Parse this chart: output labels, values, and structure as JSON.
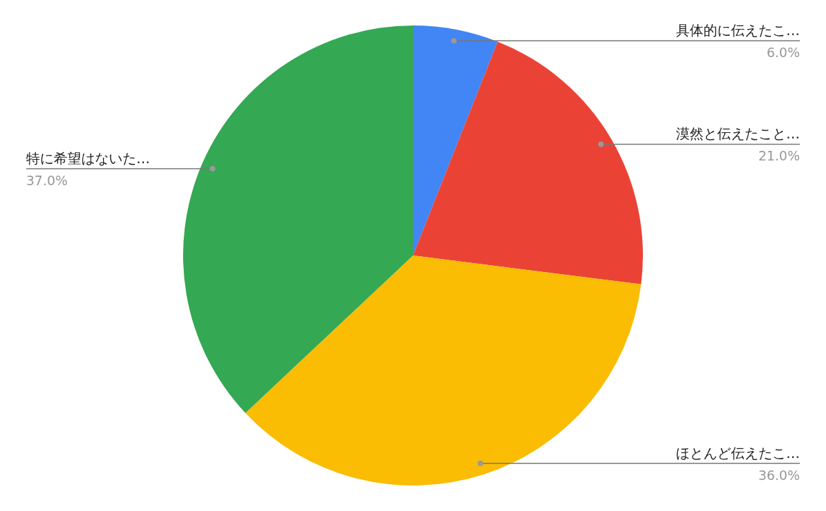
{
  "chart_data": {
    "type": "pie",
    "categories": [
      "具体的に伝えたこ…",
      "漠然と伝えたこと…",
      "ほとんど伝えたこ…",
      "特に希望はないた…"
    ],
    "values": [
      6,
      21,
      36,
      37
    ],
    "colors": [
      "#4285f4",
      "#ea4335",
      "#fbbc04",
      "#34a853"
    ],
    "value_labels": [
      "6.0%",
      "21.0%",
      "36.0%",
      "37.0%"
    ],
    "legend": false
  }
}
